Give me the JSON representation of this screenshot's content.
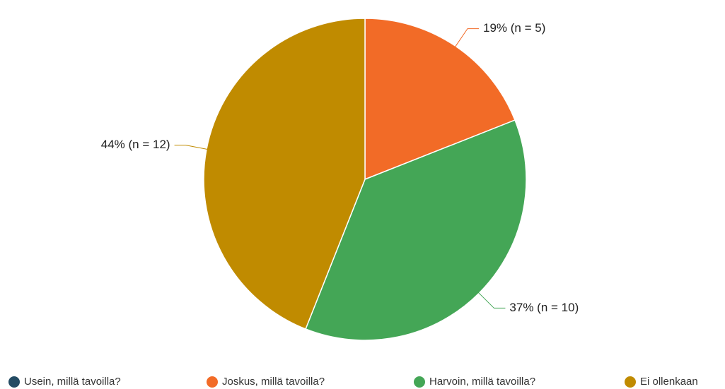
{
  "chart_data": {
    "type": "pie",
    "categories": [
      "Usein, millä tavoilla?",
      "Joskus, millä tavoilla?",
      "Harvoin, millä tavoilla?",
      "Ei ollenkaan"
    ],
    "values": [
      0,
      19,
      37,
      44
    ],
    "value_labels": [
      null,
      "19% (n = 5)",
      "37% (n = 10)",
      "44% (n = 12)"
    ],
    "colors": [
      "#234b63",
      "#f26b27",
      "#44a656",
      "#c08b00"
    ],
    "legend": "bottom"
  }
}
